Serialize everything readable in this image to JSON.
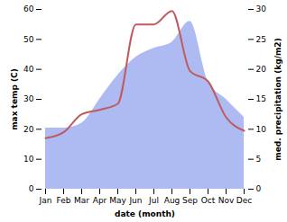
{
  "chart_data": {
    "type": "line",
    "categories": [
      "Jan",
      "Feb",
      "Mar",
      "Apr",
      "May",
      "Jun",
      "Jul",
      "Aug",
      "Sep",
      "Oct",
      "Nov",
      "Dec"
    ],
    "x_label": "date (month)",
    "y_label": "max temp (C)",
    "y2_label": "med. precipitation (kg/m2)",
    "ylim": [
      0,
      60
    ],
    "yticks": [
      0,
      10,
      20,
      30,
      40,
      50,
      60
    ],
    "y2lim": [
      0,
      30
    ],
    "y2ticks": [
      0,
      5,
      10,
      15,
      20,
      25,
      30
    ],
    "grid": false,
    "series": [
      {
        "name": "med. precipitation",
        "type": "area",
        "axis": "y2",
        "color": "#aebbf3",
        "values": [
          10.2,
          10.2,
          11,
          15,
          19,
          22,
          23.5,
          24.5,
          28,
          18,
          15,
          12
        ]
      },
      {
        "name": "max temp",
        "type": "line",
        "axis": "y",
        "color": "#c05a5e",
        "values": [
          17,
          19,
          25,
          26.5,
          28.5,
          55,
          55,
          59.5,
          39.5,
          36,
          24,
          19.5
        ]
      }
    ]
  }
}
